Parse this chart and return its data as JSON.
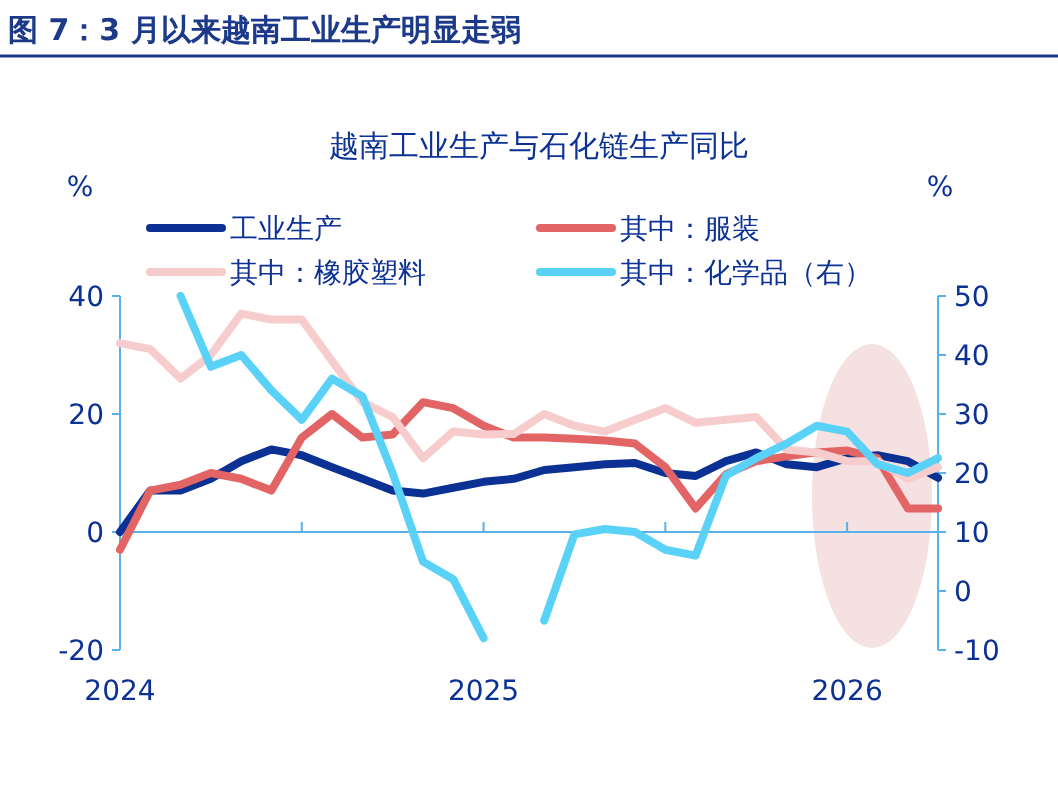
{
  "chart_data": {
    "type": "line",
    "title": "图 7：3 月以来越南工业生产明显走弱",
    "subtitle": "越南工业生产与石化链生产同比",
    "ylabel": "%",
    "y2label": "%",
    "x": [
      "2024-01",
      "2024-02",
      "2024-03",
      "2024-04",
      "2024-05",
      "2024-06",
      "2024-07",
      "2024-08",
      "2024-09",
      "2024-10",
      "2024-11",
      "2024-12",
      "2025-01",
      "2025-02",
      "2025-03",
      "2025-04",
      "2025-05",
      "2025-06",
      "2025-07",
      "2025-08",
      "2025-09",
      "2025-10",
      "2025-11",
      "2025-12",
      "2026-01",
      "2026-02",
      "2026-03",
      "2026-04"
    ],
    "xlim": [
      "2024-01",
      "2026-04"
    ],
    "xticks": [
      {
        "value": "2024-01",
        "label": "2024"
      },
      {
        "value": "2024-07",
        "label": null
      },
      {
        "value": "2025-01",
        "label": "2025"
      },
      {
        "value": "2025-07",
        "label": null
      },
      {
        "value": "2026-01",
        "label": "2026"
      }
    ],
    "ylim": [
      -20,
      40
    ],
    "yticks": [
      -20,
      0,
      20,
      40
    ],
    "y2lim": [
      -10,
      50
    ],
    "y2ticks": [
      -10,
      0,
      10,
      20,
      30,
      40,
      50
    ],
    "ref_lines": [
      {
        "axis": "y",
        "value": 0,
        "color": "#5ab0e8"
      }
    ],
    "legend": "top",
    "grid": false,
    "marker": "none",
    "line_style": "solid",
    "series": [
      {
        "name": "工业生产",
        "color": "#0c3194",
        "values": [
          0,
          7,
          7,
          9,
          12,
          14,
          13,
          11,
          9,
          7,
          6.5,
          7.5,
          8.5,
          9,
          10.5,
          11,
          11.5,
          11.7,
          10,
          9.5,
          12,
          13.5,
          11.5,
          11,
          12.5,
          13,
          12,
          9.2
        ]
      },
      {
        "name": "其中：服装",
        "color": "#e36464",
        "values": [
          -3,
          7,
          8,
          10,
          9,
          7,
          16,
          20,
          16,
          16.5,
          22,
          21,
          18,
          16,
          16,
          15.8,
          15.5,
          15,
          11,
          4,
          9.8,
          12,
          12.8,
          13.5,
          13.8,
          12.5,
          4,
          4
        ]
      },
      {
        "name": "其中：橡胶塑料",
        "color": "#f7cccc",
        "values": [
          32,
          31,
          26,
          30,
          37,
          36,
          36,
          29,
          22,
          19.5,
          12.5,
          17,
          16.5,
          16.6,
          20,
          18,
          17,
          19,
          21,
          18.5,
          19,
          19.5,
          14,
          13.5,
          12,
          12,
          9,
          11
        ]
      },
      {
        "name": "其中：化学品（右）",
        "color": "#5ad2f8",
        "axis": "y2",
        "values": [
          null,
          null,
          50,
          38,
          40,
          34,
          29,
          36,
          33,
          20,
          5,
          2,
          -8,
          null,
          -5,
          9.6,
          10.5,
          10,
          7,
          6,
          19.6,
          22.5,
          25,
          28,
          27,
          21.5,
          20,
          22.5
        ]
      }
    ]
  }
}
